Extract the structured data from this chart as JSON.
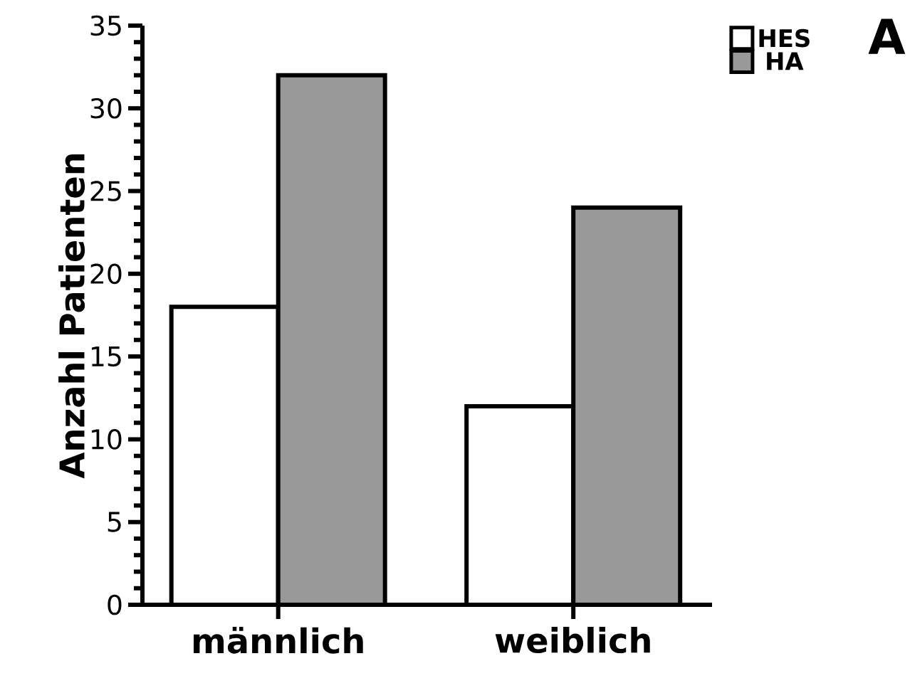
{
  "chart_data": {
    "type": "bar",
    "ylabel": "Anzahl Patienten",
    "categories": [
      "männlich",
      "weiblich"
    ],
    "series": [
      {
        "name": "HES",
        "color": "#ffffff",
        "values": [
          18,
          12
        ]
      },
      {
        "name": "HA",
        "color": "#999999",
        "values": [
          32,
          24
        ]
      }
    ],
    "ylim": [
      0,
      35
    ],
    "yticks": [
      0,
      5,
      10,
      15,
      20,
      25,
      30,
      35
    ],
    "legend": "top right",
    "grid": false,
    "annotations": [
      "A"
    ]
  }
}
